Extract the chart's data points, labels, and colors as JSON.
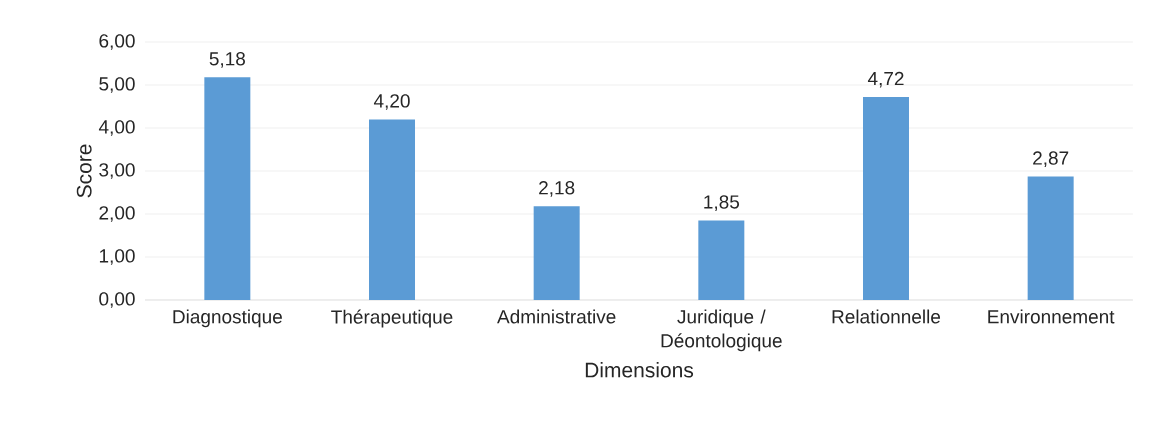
{
  "chart_data": {
    "type": "bar",
    "xlabel": "Dimensions",
    "ylabel": "Score",
    "categories": [
      "Diagnostique",
      "Thérapeutique",
      "Administrative",
      "Juridique / Déontologique",
      "Relationnelle",
      "Environnement"
    ],
    "values": [
      5.18,
      4.2,
      2.18,
      1.85,
      4.72,
      2.87
    ],
    "value_labels": [
      "5,18",
      "4,20",
      "2,18",
      "1,85",
      "4,72",
      "2,87"
    ],
    "color": "#5b9bd5",
    "ylim": [
      0,
      6
    ],
    "yticks": [
      {
        "value": 0,
        "label": "0,00"
      },
      {
        "value": 1,
        "label": "1,00"
      },
      {
        "value": 2,
        "label": "2,00"
      },
      {
        "value": 3,
        "label": "3,00"
      },
      {
        "value": 4,
        "label": "4,00"
      },
      {
        "value": 5,
        "label": "5,00"
      },
      {
        "value": 6,
        "label": "6,00"
      }
    ],
    "grid": "y"
  }
}
